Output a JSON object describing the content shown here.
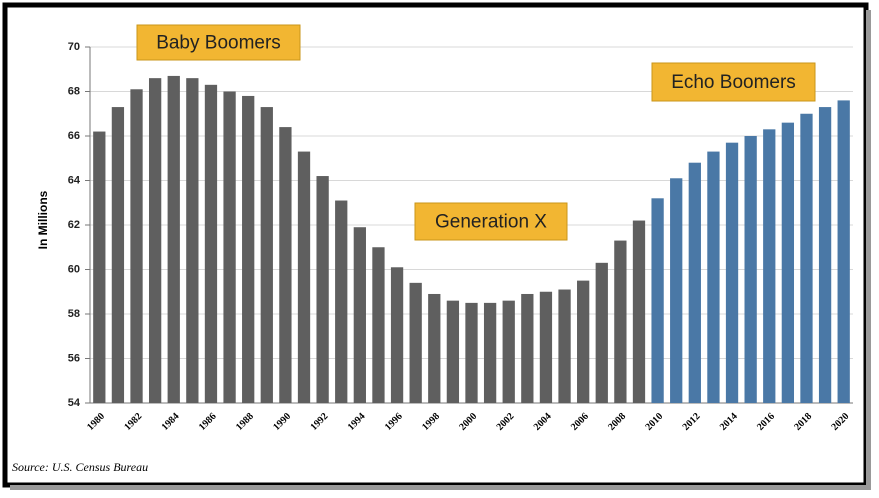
{
  "chart_data": {
    "type": "bar",
    "y_label": "In Millions",
    "source": "Source: U.S. Census Bureau",
    "annotations": [
      "Baby Boomers",
      "Generation X",
      "Echo Boomers"
    ],
    "categories": [
      "1980",
      null,
      "1982",
      null,
      "1984",
      null,
      "1986",
      null,
      "1988",
      null,
      "1990",
      null,
      "1992",
      null,
      "1994",
      null,
      "1996",
      null,
      "1998",
      null,
      "2000",
      null,
      "2002",
      null,
      "2004",
      null,
      "2006",
      null,
      "2008",
      null,
      "2010",
      null,
      "2012",
      null,
      "2014",
      null,
      "2016",
      null,
      "2018",
      null,
      "2020"
    ],
    "values": [
      66.2,
      67.3,
      68.1,
      68.6,
      68.7,
      68.6,
      68.3,
      68.0,
      67.8,
      67.3,
      66.4,
      65.3,
      64.2,
      63.1,
      61.9,
      61.0,
      60.1,
      59.4,
      58.9,
      58.6,
      58.5,
      58.5,
      58.6,
      58.9,
      59.0,
      59.1,
      59.5,
      60.3,
      61.3,
      62.2,
      63.2,
      64.1,
      64.8,
      65.3,
      65.7,
      66.0,
      66.3,
      66.6,
      67.0,
      67.3,
      67.6
    ],
    "colors": [
      "#5f5f5f",
      "#5f5f5f",
      "#5f5f5f",
      "#5f5f5f",
      "#5f5f5f",
      "#5f5f5f",
      "#5f5f5f",
      "#5f5f5f",
      "#5f5f5f",
      "#5f5f5f",
      "#5f5f5f",
      "#5f5f5f",
      "#5f5f5f",
      "#5f5f5f",
      "#5f5f5f",
      "#5f5f5f",
      "#5f5f5f",
      "#5f5f5f",
      "#5f5f5f",
      "#5f5f5f",
      "#5f5f5f",
      "#5f5f5f",
      "#5f5f5f",
      "#5f5f5f",
      "#5f5f5f",
      "#5f5f5f",
      "#5f5f5f",
      "#5f5f5f",
      "#5f5f5f",
      "#5f5f5f",
      "#4a78a6",
      "#4a78a6",
      "#4a78a6",
      "#4a78a6",
      "#4a78a6",
      "#4a78a6",
      "#4a78a6",
      "#4a78a6",
      "#4a78a6",
      "#4a78a6",
      "#4a78a6"
    ],
    "ylim": [
      54,
      70
    ],
    "yticks": [
      54,
      56,
      58,
      60,
      62,
      64,
      66,
      68,
      70
    ],
    "grid": true,
    "annotation_color": "#f2b632"
  }
}
